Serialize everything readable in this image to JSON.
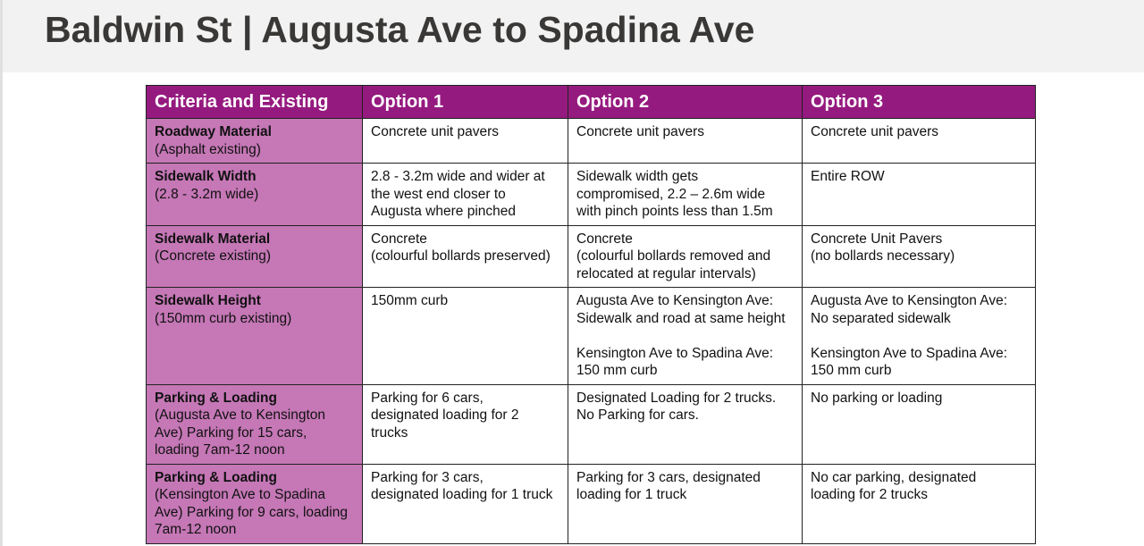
{
  "title": "Baldwin St | Augusta Ave to Spadina Ave",
  "colors": {
    "header_bg": "#951a7f",
    "criteria_bg": "#c577b6"
  },
  "table": {
    "headers": [
      "Criteria and Existing",
      "Option 1",
      "Option 2",
      "Option 3"
    ],
    "rows": [
      {
        "criteria": "Roadway Material",
        "existing": "(Asphalt existing)",
        "options": [
          "Concrete unit pavers",
          "Concrete unit pavers",
          "Concrete unit pavers"
        ]
      },
      {
        "criteria": "Sidewalk Width",
        "existing": "(2.8 - 3.2m wide)",
        "options": [
          "2.8 - 3.2m wide and wider at\nthe west end closer to\nAugusta where pinched",
          "Sidewalk width gets\ncompromised, 2.2 – 2.6m wide\nwith pinch points less than 1.5m",
          "Entire ROW"
        ]
      },
      {
        "criteria": "Sidewalk Material",
        "existing": "(Concrete existing)",
        "options": [
          "Concrete\n(colourful bollards preserved)",
          "Concrete\n(colourful bollards removed and\nrelocated at regular intervals)",
          "Concrete Unit Pavers\n(no bollards necessary)"
        ]
      },
      {
        "criteria": "Sidewalk Height",
        "existing": "(150mm curb existing)",
        "options": [
          "150mm curb",
          "Augusta Ave to Kensington Ave:\nSidewalk and road at same height\n\nKensington Ave to Spadina Ave:\n150 mm curb",
          "Augusta Ave to Kensington Ave:\nNo separated sidewalk\n\nKensington Ave to Spadina Ave:\n150 mm curb"
        ]
      },
      {
        "criteria": "Parking & Loading",
        "existing": "(Augusta Ave to Kensington\nAve) Parking for 15 cars,\nloading 7am-12 noon",
        "options": [
          "Parking for 6 cars,\ndesignated loading for 2\ntrucks",
          "Designated Loading for 2 trucks.\nNo Parking for cars.",
          "No parking or loading"
        ]
      },
      {
        "criteria": "Parking & Loading",
        "existing": "(Kensington Ave to Spadina\nAve) Parking for 9 cars, loading\n7am-12 noon",
        "options": [
          "Parking for 3 cars,\ndesignated loading for 1 truck",
          "Parking for 3 cars, designated\nloading for 1 truck",
          "No car parking, designated\nloading for 2 trucks"
        ]
      }
    ]
  }
}
